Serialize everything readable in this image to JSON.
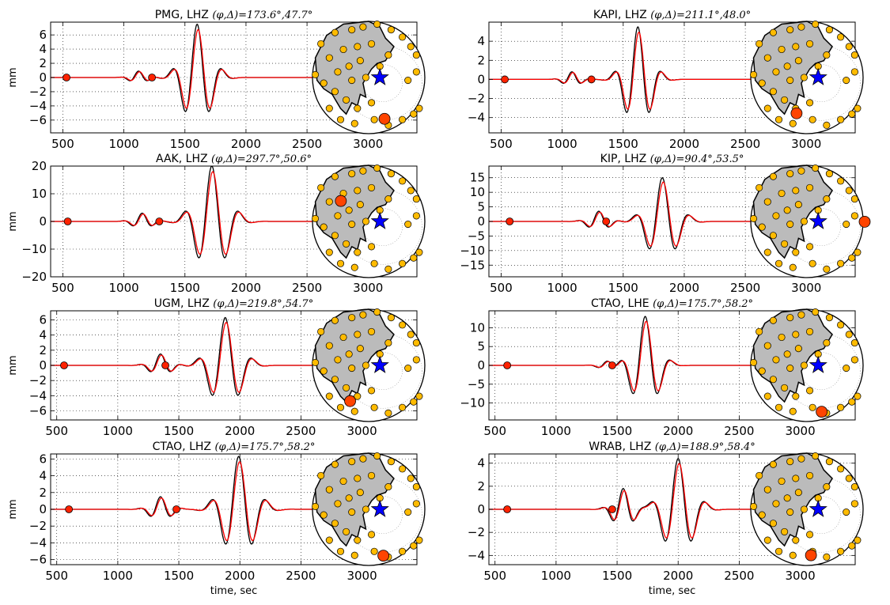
{
  "figure": {
    "xlabel": "time, sec",
    "ylabel": "mm",
    "colors": {
      "data": "#000000",
      "synthetic": "#ff0000",
      "event_marker": "#ff2200",
      "station": "#ffbb00",
      "station_highlight": "#ff4400",
      "epicenter": "#0000ff",
      "land": "#bbbbbb",
      "grid": "#000000"
    }
  },
  "chart_data": [
    {
      "type": "line",
      "title": "PMG, LHZ",
      "annotation": "(φ,Δ)=173.6°,47.7°",
      "xlim": [
        400,
        3400
      ],
      "ylim": [
        -7.8,
        7.8
      ],
      "yticks": [
        -6,
        -4,
        -2,
        0,
        2,
        4,
        6
      ],
      "xticks": [
        500,
        1000,
        1500,
        2000,
        2500,
        3000
      ],
      "ylabel_visible": true,
      "xlabel_visible": false,
      "grid": true,
      "markers": [
        [
          530,
          0
        ],
        [
          1230,
          0
        ]
      ],
      "station_marker": {
        "az": 173.6,
        "dist": 47.7
      },
      "packets": [
        {
          "c": 1120,
          "a": 0.9,
          "T": 160,
          "w": 90
        },
        {
          "c": 1600,
          "a": 7.5,
          "T": 210,
          "w": 150
        }
      ]
    },
    {
      "type": "line",
      "title": "KAPI, LHZ",
      "annotation": "(φ,Δ)=211.1°,48.0°",
      "xlim": [
        400,
        3400
      ],
      "ylim": [
        -5.6,
        6.0
      ],
      "yticks": [
        -4,
        -2,
        0,
        2,
        4
      ],
      "xticks": [
        500,
        1000,
        1500,
        2000,
        2500,
        3000
      ],
      "ylabel_visible": false,
      "xlabel_visible": false,
      "grid": true,
      "markers": [
        [
          530,
          0
        ],
        [
          1240,
          0
        ]
      ],
      "station_marker": {
        "az": 211.1,
        "dist": 48.0
      },
      "packets": [
        {
          "c": 1080,
          "a": 0.8,
          "T": 160,
          "w": 90
        },
        {
          "c": 1620,
          "a": 5.5,
          "T": 200,
          "w": 140
        }
      ]
    },
    {
      "type": "line",
      "title": "AAK, LHZ",
      "annotation": "(φ,Δ)=297.7°,50.6°",
      "xlim": [
        400,
        3400
      ],
      "ylim": [
        -20,
        20
      ],
      "yticks": [
        -20,
        -10,
        0,
        10,
        20
      ],
      "xticks": [
        500,
        1000,
        1500,
        2000,
        2500,
        3000
      ],
      "ylabel_visible": true,
      "xlabel_visible": false,
      "grid": true,
      "markers": [
        [
          540,
          0
        ],
        [
          1290,
          0
        ]
      ],
      "station_marker": {
        "az": 297.7,
        "dist": 50.6
      },
      "packets": [
        {
          "c": 1150,
          "a": 3.0,
          "T": 170,
          "w": 100
        },
        {
          "c": 1720,
          "a": 20,
          "T": 230,
          "w": 170
        }
      ]
    },
    {
      "type": "line",
      "title": "KIP, LHZ",
      "annotation": "(φ,Δ)=90.4°,53.5°",
      "xlim": [
        400,
        3400
      ],
      "ylim": [
        -19,
        19
      ],
      "yticks": [
        -15,
        -10,
        -5,
        0,
        5,
        10,
        15
      ],
      "xticks": [
        500,
        1000,
        1500,
        2000,
        2500,
        3000
      ],
      "ylabel_visible": false,
      "xlabel_visible": false,
      "grid": true,
      "markers": [
        [
          570,
          0
        ],
        [
          1360,
          0
        ]
      ],
      "station_marker": {
        "az": 90.4,
        "dist": 53.5
      },
      "packets": [
        {
          "c": 1300,
          "a": 3.5,
          "T": 180,
          "w": 110
        },
        {
          "c": 1820,
          "a": 15,
          "T": 230,
          "w": 160
        }
      ]
    },
    {
      "type": "line",
      "title": "UGM, LHZ",
      "annotation": "(φ,Δ)=219.8°,54.7°",
      "xlim": [
        450,
        3450
      ],
      "ylim": [
        -7.2,
        7.2
      ],
      "yticks": [
        -6,
        -4,
        -2,
        0,
        2,
        4,
        6
      ],
      "xticks": [
        500,
        1000,
        1500,
        2000,
        2500,
        3000
      ],
      "ylabel_visible": true,
      "xlabel_visible": false,
      "grid": true,
      "markers": [
        [
          560,
          0
        ],
        [
          1390,
          0
        ]
      ],
      "station_marker": {
        "az": 219.8,
        "dist": 54.7
      },
      "packets": [
        {
          "c": 1350,
          "a": 1.5,
          "T": 180,
          "w": 110
        },
        {
          "c": 1880,
          "a": 6.3,
          "T": 230,
          "w": 160
        }
      ]
    },
    {
      "type": "line",
      "title": "CTAO, LHE",
      "annotation": "(φ,Δ)=175.7°,58.2°",
      "xlim": [
        450,
        3450
      ],
      "ylim": [
        -14.5,
        14.5
      ],
      "yticks": [
        -10,
        -5,
        0,
        5,
        10
      ],
      "xticks": [
        500,
        1000,
        1500,
        2000,
        2500,
        3000
      ],
      "ylabel_visible": false,
      "xlabel_visible": false,
      "grid": true,
      "markers": [
        [
          600,
          0
        ],
        [
          1460,
          0
        ]
      ],
      "station_marker": {
        "az": 175.7,
        "dist": 58.2
      },
      "packets": [
        {
          "c": 1420,
          "a": 1.2,
          "T": 170,
          "w": 90
        },
        {
          "c": 1730,
          "a": 13,
          "T": 220,
          "w": 140
        }
      ]
    },
    {
      "type": "line",
      "title": "CTAO, LHZ",
      "annotation": "(φ,Δ)=175.7°,58.2°",
      "xlim": [
        450,
        3450
      ],
      "ylim": [
        -6.6,
        6.6
      ],
      "yticks": [
        -6,
        -4,
        -2,
        0,
        2,
        4,
        6
      ],
      "xticks": [
        500,
        1000,
        1500,
        2000,
        2500,
        3000
      ],
      "ylabel_visible": true,
      "xlabel_visible": true,
      "grid": true,
      "markers": [
        [
          600,
          0
        ],
        [
          1480,
          0
        ]
      ],
      "station_marker": {
        "az": 175.7,
        "dist": 58.2
      },
      "packets": [
        {
          "c": 1350,
          "a": 1.5,
          "T": 180,
          "w": 110
        },
        {
          "c": 1990,
          "a": 6.3,
          "T": 230,
          "w": 170
        }
      ]
    },
    {
      "type": "line",
      "title": "WRAB, LHZ",
      "annotation": "(φ,Δ)=188.9°,58.4°",
      "xlim": [
        450,
        3450
      ],
      "ylim": [
        -4.8,
        4.8
      ],
      "yticks": [
        -4,
        -2,
        0,
        2,
        4
      ],
      "xticks": [
        500,
        1000,
        1500,
        2000,
        2500,
        3000
      ],
      "ylabel_visible": false,
      "xlabel_visible": true,
      "grid": true,
      "markers": [
        [
          600,
          0
        ],
        [
          1460,
          0
        ]
      ],
      "station_marker": {
        "az": 188.9,
        "dist": 58.4
      },
      "packets": [
        {
          "c": 1550,
          "a": 1.8,
          "T": 180,
          "w": 110
        },
        {
          "c": 2000,
          "a": 4.4,
          "T": 230,
          "w": 160
        }
      ]
    }
  ]
}
